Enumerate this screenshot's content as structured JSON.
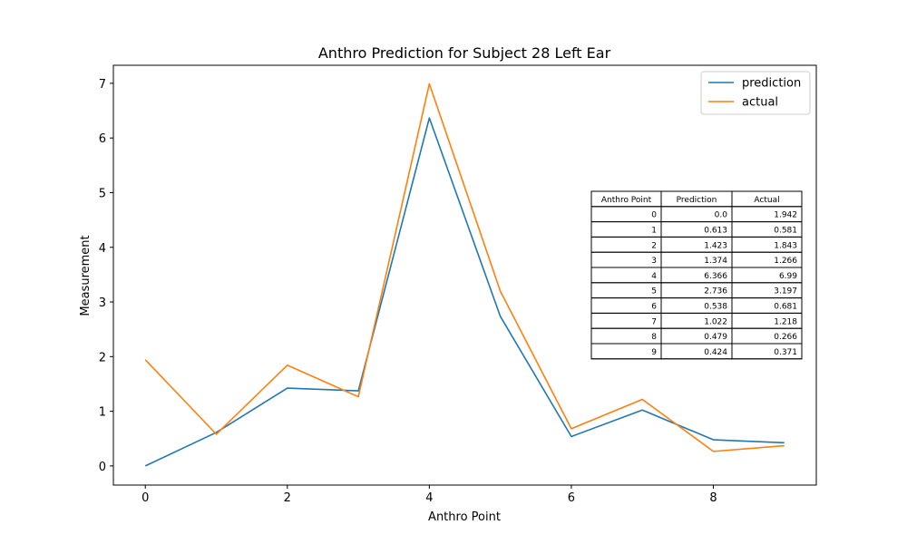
{
  "chart_data": {
    "type": "line",
    "title": "Anthro Prediction for Subject 28 Left Ear",
    "xlabel": "Anthro Point",
    "ylabel": "Measurement",
    "x": [
      0,
      1,
      2,
      3,
      4,
      5,
      6,
      7,
      8,
      9
    ],
    "xlim": [
      -0.45,
      9.45
    ],
    "ylim": [
      -0.35,
      7.33
    ],
    "xticks": [
      0,
      2,
      4,
      6,
      8
    ],
    "yticks": [
      0,
      1,
      2,
      3,
      4,
      5,
      6,
      7
    ],
    "grid": false,
    "legend_position": "top-right",
    "series": [
      {
        "name": "prediction",
        "color": "#1f77b4",
        "values": [
          0.0,
          0.613,
          1.423,
          1.374,
          6.366,
          2.736,
          0.538,
          1.022,
          0.479,
          0.424
        ]
      },
      {
        "name": "actual",
        "color": "#ff7f0e",
        "values": [
          1.942,
          0.581,
          1.843,
          1.266,
          6.99,
          3.197,
          0.681,
          1.218,
          0.266,
          0.371
        ]
      }
    ],
    "table": {
      "headers": [
        "Anthro Point",
        "Prediction",
        "Actual"
      ],
      "rows": [
        [
          "0",
          "0.0",
          "1.942"
        ],
        [
          "1",
          "0.613",
          "0.581"
        ],
        [
          "2",
          "1.423",
          "1.843"
        ],
        [
          "3",
          "1.374",
          "1.266"
        ],
        [
          "4",
          "6.366",
          "6.99"
        ],
        [
          "5",
          "2.736",
          "3.197"
        ],
        [
          "6",
          "0.538",
          "0.681"
        ],
        [
          "7",
          "1.022",
          "1.218"
        ],
        [
          "8",
          "0.479",
          "0.266"
        ],
        [
          "9",
          "0.424",
          "0.371"
        ]
      ]
    }
  }
}
